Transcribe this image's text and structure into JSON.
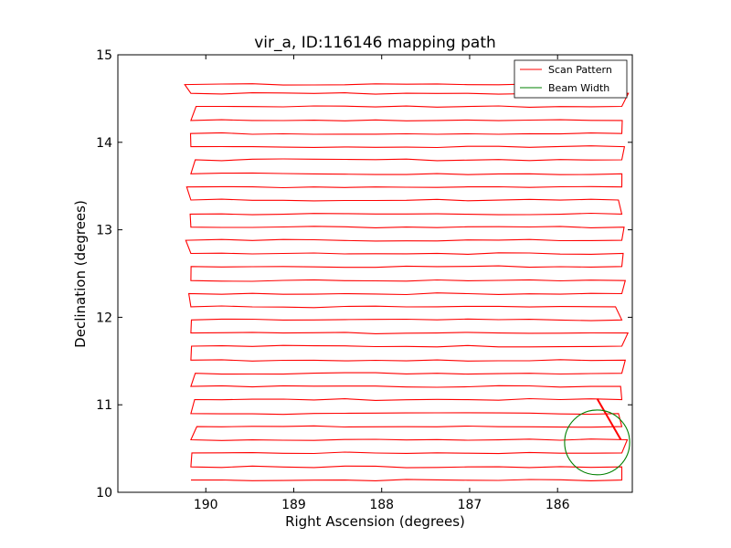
{
  "chart_data": {
    "type": "line",
    "title": "vir_a, ID:116146 mapping path",
    "xlabel": "Right Ascension (degrees)",
    "ylabel": "Declination (degrees)",
    "xlim": [
      191.0,
      185.15
    ],
    "ylim": [
      10,
      15
    ],
    "x_inverted": true,
    "xticks": [
      190,
      189,
      188,
      187,
      186
    ],
    "yticks": [
      10,
      11,
      12,
      13,
      14,
      15
    ],
    "grid": false,
    "legend_position": "top-right",
    "colors": {
      "scan": "#ff0000",
      "beam": "#008000",
      "axes": "#000000"
    },
    "series": [
      {
        "name": "Scan Pattern",
        "kind": "line",
        "row_declinations": [
          10.14,
          10.29,
          10.45,
          10.6,
          10.75,
          10.9,
          11.06,
          11.21,
          11.36,
          11.51,
          11.67,
          11.82,
          11.97,
          12.12,
          12.27,
          12.42,
          12.58,
          12.73,
          12.88,
          13.03,
          13.18,
          13.34,
          13.49,
          13.64,
          13.8,
          13.95,
          14.1,
          14.25,
          14.41,
          14.56,
          14.66
        ],
        "ra_east": 190.17,
        "ra_west": 185.27,
        "end_segment": {
          "x": [
            185.28,
            185.55
          ],
          "y": [
            10.6,
            11.07
          ]
        }
      },
      {
        "name": "Beam Width",
        "kind": "circle",
        "center": [
          185.55,
          10.57
        ],
        "radius": 0.37
      }
    ]
  }
}
